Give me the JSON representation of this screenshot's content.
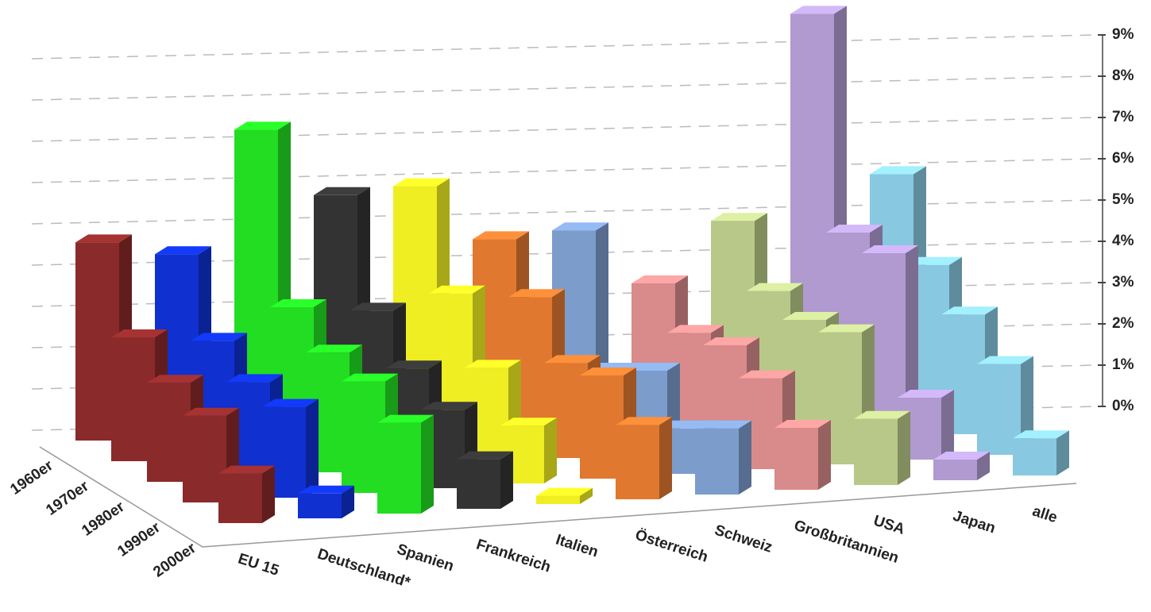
{
  "chart_data": {
    "type": "bar",
    "categories": [
      "1960er",
      "1970er",
      "1980er",
      "1990er",
      "2000er"
    ],
    "series": [
      {
        "name": "EU 15",
        "color": "#8b2a2a",
        "values": [
          4.8,
          3.0,
          2.4,
          2.1,
          1.2
        ]
      },
      {
        "name": "Deutschland*",
        "color": "#1030d0",
        "values": [
          4.4,
          2.8,
          2.3,
          2.2,
          0.6
        ]
      },
      {
        "name": "Spanien",
        "color": "#22dd22",
        "values": [
          7.3,
          3.5,
          2.9,
          2.7,
          2.2
        ]
      },
      {
        "name": "Frankreich",
        "color": "#333333",
        "values": [
          5.6,
          3.3,
          2.4,
          1.9,
          1.2
        ]
      },
      {
        "name": "Italien",
        "color": "#eeee22",
        "values": [
          5.7,
          3.6,
          2.3,
          1.4,
          0.2
        ]
      },
      {
        "name": "Österreich",
        "color": "#e07830",
        "values": [
          4.3,
          3.4,
          2.3,
          2.5,
          1.8
        ]
      },
      {
        "name": "Schweiz",
        "color": "#7c9ccc",
        "values": [
          4.4,
          1.5,
          2.0,
          1.1,
          1.6
        ]
      },
      {
        "name": "Großbritannien",
        "color": "#d98a8a",
        "values": [
          3.0,
          2.3,
          2.5,
          2.2,
          1.5
        ]
      },
      {
        "name": "USA",
        "color": "#b8c888",
        "values": [
          4.4,
          3.2,
          3.0,
          3.2,
          1.6
        ]
      },
      {
        "name": "Japan",
        "color": "#b09ad0",
        "values": [
          9.3,
          4.5,
          4.5,
          1.5,
          0.5
        ]
      },
      {
        "name": "alle",
        "color": "#88c8e0",
        "values": [
          5.3,
          3.6,
          2.9,
          2.2,
          0.9
        ]
      }
    ],
    "ylim": [
      0,
      9
    ],
    "yticks": [
      {
        "value": 0,
        "label": "0%"
      },
      {
        "value": 1,
        "label": "1%"
      },
      {
        "value": 2,
        "label": "2%"
      },
      {
        "value": 3,
        "label": "3%"
      },
      {
        "value": 4,
        "label": "4%"
      },
      {
        "value": 5,
        "label": "5%"
      },
      {
        "value": 6,
        "label": "6%"
      },
      {
        "value": 7,
        "label": "7%"
      },
      {
        "value": 8,
        "label": "8%"
      },
      {
        "value": 9,
        "label": "9%"
      }
    ],
    "grid": true
  }
}
